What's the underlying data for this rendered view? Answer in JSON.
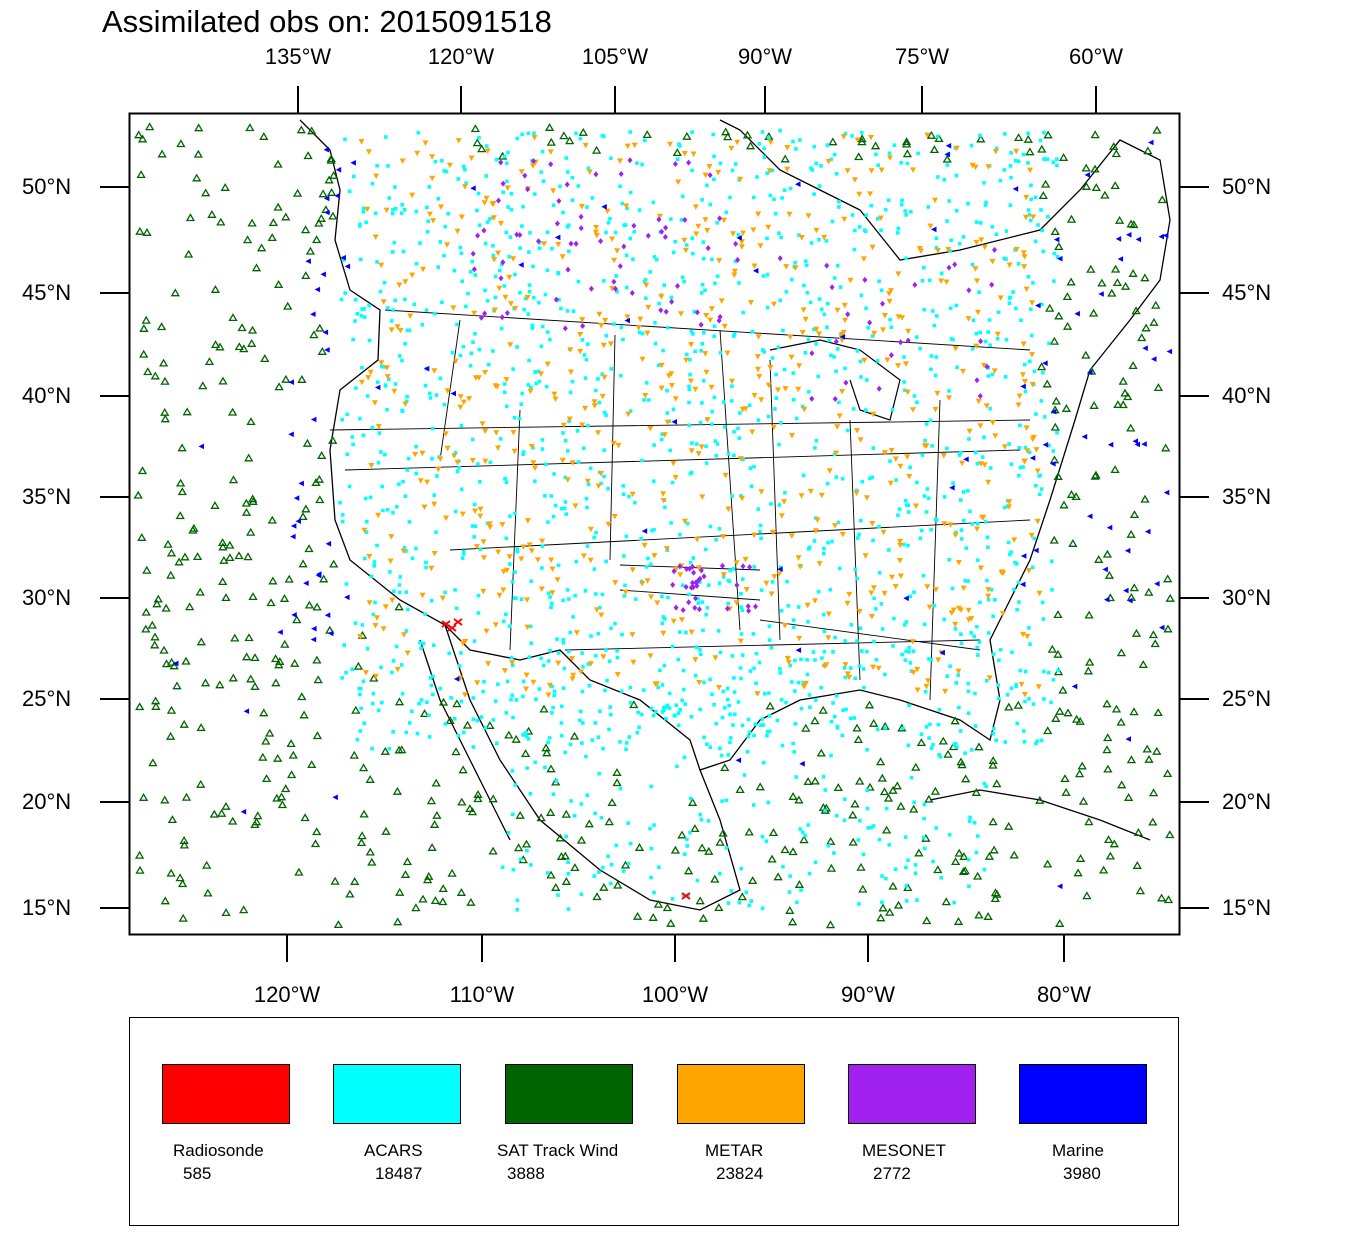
{
  "title": "Assimilated obs on: 2015091518",
  "axes": {
    "top_lon_labels": [
      "135°W",
      "120°W",
      "105°W",
      "90°W",
      "75°W",
      "60°W"
    ],
    "bottom_lon_labels": [
      "120°W",
      "110°W",
      "100°W",
      "90°W",
      "80°W"
    ],
    "lat_labels": [
      "50°N",
      "45°N",
      "40°N",
      "35°N",
      "30°N",
      "25°N",
      "20°N",
      "15°N"
    ]
  },
  "legend": [
    {
      "name": "Radiosonde",
      "count": "585",
      "color": "#ff0000"
    },
    {
      "name": "ACARS",
      "count": "18487",
      "color": "#00ffff"
    },
    {
      "name": "SAT Track Wind",
      "count": "3888",
      "color": "#006400"
    },
    {
      "name": "METAR",
      "count": "23824",
      "color": "#ffa500"
    },
    {
      "name": "MESONET",
      "count": "2772",
      "color": "#a020f0"
    },
    {
      "name": "Marine",
      "count": "3980",
      "color": "#0000ff"
    }
  ]
}
